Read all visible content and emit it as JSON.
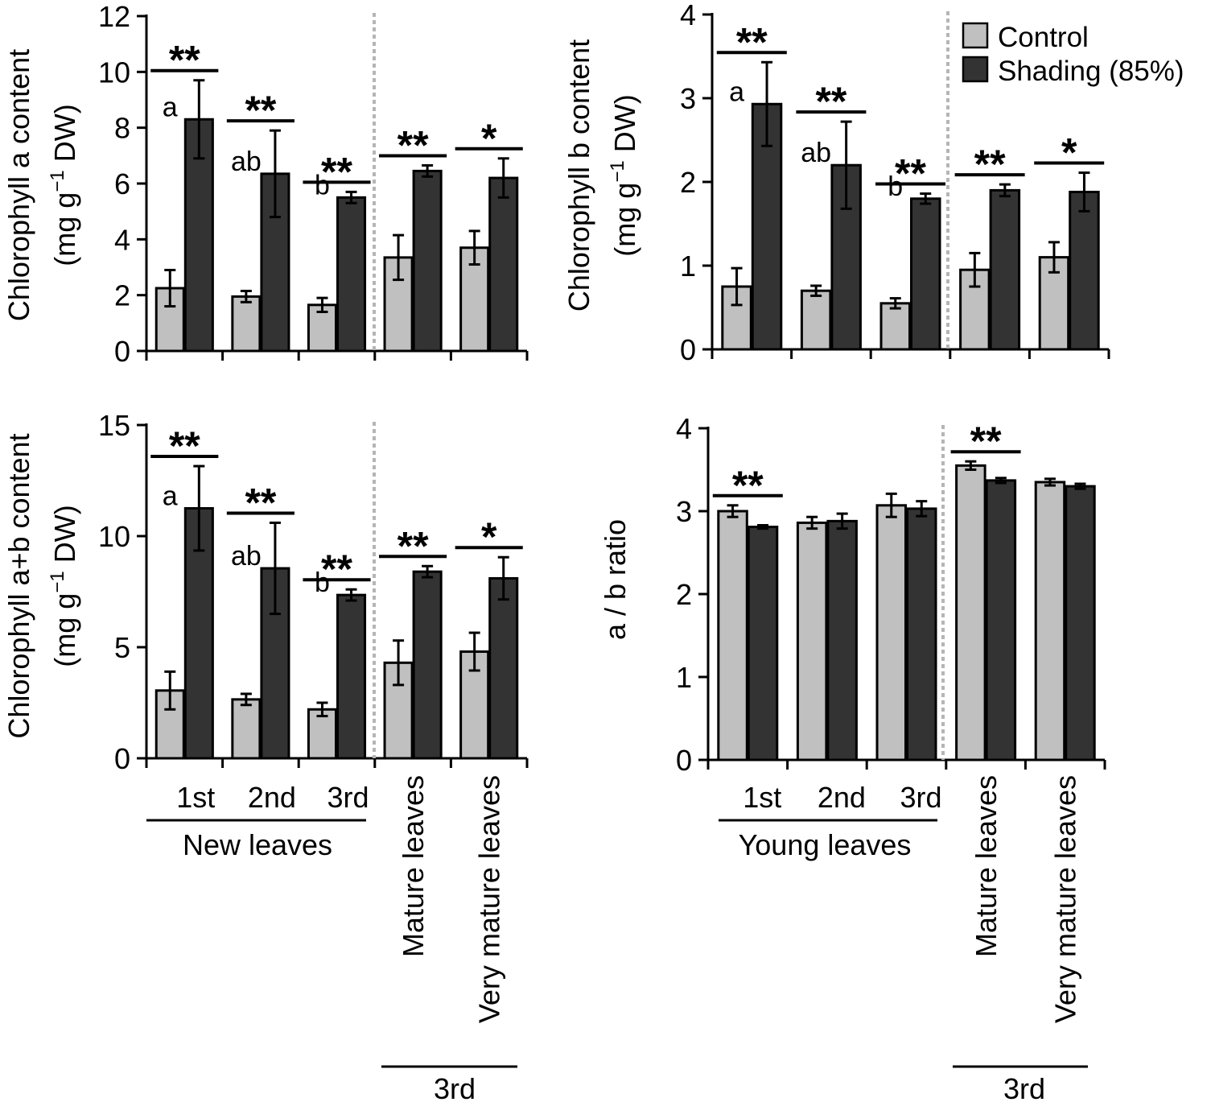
{
  "legend": {
    "control": "Control",
    "shading": "Shading (85%)"
  },
  "colors": {
    "control": "#c0c0c0",
    "shading": "#333333",
    "axis": "#000000",
    "divider": "#b5b5b5"
  },
  "chart_data": [
    {
      "id": "chl-a",
      "type": "bar",
      "ylabel_line1": "Chlorophyll a content",
      "ylabel_unit_pre": "(mg g",
      "ylabel_unit_sup": "−1",
      "ylabel_unit_post": " DW)",
      "ylim": [
        0,
        12
      ],
      "yticks": [
        0,
        2,
        4,
        6,
        8,
        10,
        12
      ],
      "categories": [
        "1st",
        "2nd",
        "3rd",
        "Mature leaves",
        "Very mature leaves"
      ],
      "series": [
        {
          "name": "Control",
          "values": [
            2.25,
            1.95,
            1.65,
            3.35,
            3.7
          ],
          "errors": [
            0.65,
            0.2,
            0.25,
            0.8,
            0.6
          ]
        },
        {
          "name": "Shading (85%)",
          "values": [
            8.3,
            6.35,
            5.5,
            6.45,
            6.2
          ],
          "errors": [
            1.4,
            1.55,
            0.2,
            0.2,
            0.7
          ]
        }
      ],
      "significance": [
        "**",
        "**",
        "**",
        "**",
        "*"
      ],
      "letters": [
        "a",
        "ab",
        "b",
        "",
        ""
      ]
    },
    {
      "id": "chl-b",
      "type": "bar",
      "ylabel_line1": "Chlorophyll b content",
      "ylabel_unit_pre": "(mg g",
      "ylabel_unit_sup": "−1",
      "ylabel_unit_post": " DW)",
      "ylim": [
        0,
        4
      ],
      "yticks": [
        0,
        1,
        2,
        3,
        4
      ],
      "categories": [
        "1st",
        "2nd",
        "3rd",
        "Mature leaves",
        "Very mature leaves"
      ],
      "series": [
        {
          "name": "Control",
          "values": [
            0.75,
            0.7,
            0.55,
            0.95,
            1.1
          ],
          "errors": [
            0.22,
            0.06,
            0.06,
            0.2,
            0.18
          ]
        },
        {
          "name": "Shading (85%)",
          "values": [
            2.93,
            2.2,
            1.8,
            1.9,
            1.88
          ],
          "errors": [
            0.5,
            0.52,
            0.06,
            0.07,
            0.23
          ]
        }
      ],
      "significance": [
        "**",
        "**",
        "**",
        "**",
        "*"
      ],
      "letters": [
        "a",
        "ab",
        "b",
        "",
        ""
      ]
    },
    {
      "id": "chl-ab",
      "type": "bar",
      "ylabel_line1": "Chlorophyll a+b content",
      "ylabel_unit_pre": "(mg g",
      "ylabel_unit_sup": "−1",
      "ylabel_unit_post": " DW)",
      "ylim": [
        0,
        15
      ],
      "yticks": [
        0,
        5,
        10,
        15
      ],
      "categories": [
        "1st",
        "2nd",
        "3rd",
        "Mature leaves",
        "Very mature leaves"
      ],
      "series": [
        {
          "name": "Control",
          "values": [
            3.05,
            2.65,
            2.2,
            4.3,
            4.8
          ],
          "errors": [
            0.85,
            0.25,
            0.3,
            1.0,
            0.85
          ]
        },
        {
          "name": "Shading (85%)",
          "values": [
            11.25,
            8.55,
            7.35,
            8.4,
            8.1
          ],
          "errors": [
            1.9,
            2.05,
            0.25,
            0.25,
            0.95
          ]
        }
      ],
      "significance": [
        "**",
        "**",
        "**",
        "**",
        "*"
      ],
      "letters": [
        "a",
        "ab",
        "b",
        "",
        ""
      ]
    },
    {
      "id": "ab-ratio",
      "type": "bar",
      "ylabel_line1": "a / b ratio",
      "ylim": [
        0,
        4
      ],
      "yticks": [
        0,
        1,
        2,
        3,
        4
      ],
      "categories": [
        "1st",
        "2nd",
        "3rd",
        "Mature leaves",
        "Very mature leaves"
      ],
      "series": [
        {
          "name": "Control",
          "values": [
            3.0,
            2.86,
            3.07,
            3.55,
            3.35
          ],
          "errors": [
            0.07,
            0.07,
            0.14,
            0.05,
            0.04
          ]
        },
        {
          "name": "Shading (85%)",
          "values": [
            2.81,
            2.88,
            3.03,
            3.37,
            3.3
          ],
          "errors": [
            0.02,
            0.09,
            0.09,
            0.03,
            0.03
          ]
        }
      ],
      "significance": [
        "**",
        "",
        "",
        "**",
        ""
      ],
      "letters": [
        "",
        "",
        "",
        "",
        ""
      ]
    }
  ],
  "group_labels": {
    "left_young": "New leaves",
    "right_young": "Young leaves",
    "left_old": "3rd",
    "right_old": "3rd"
  }
}
